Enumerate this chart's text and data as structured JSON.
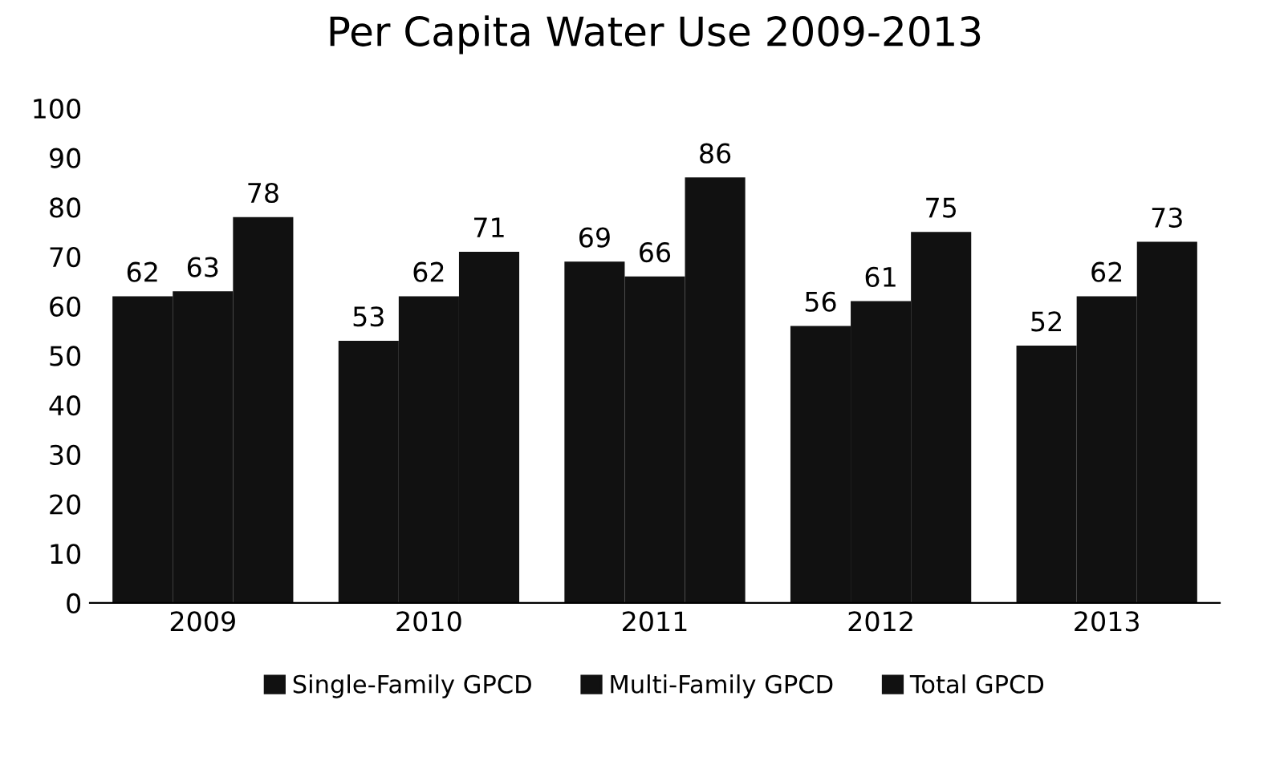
{
  "chart_data": {
    "type": "bar",
    "title": "Per Capita Water Use 2009-2013",
    "categories": [
      "2009",
      "2010",
      "2011",
      "2012",
      "2013"
    ],
    "series": [
      {
        "name": "Single-Family GPCD",
        "color": "#111111",
        "values": [
          62,
          53,
          69,
          56,
          52
        ]
      },
      {
        "name": "Multi-Family GPCD",
        "color": "#111111",
        "values": [
          63,
          62,
          66,
          61,
          62
        ]
      },
      {
        "name": "Total GPCD",
        "color": "#111111",
        "values": [
          78,
          71,
          86,
          75,
          73
        ]
      }
    ],
    "ylim": [
      0,
      100
    ],
    "yticks": [
      0,
      10,
      20,
      30,
      40,
      50,
      60,
      70,
      80,
      90,
      100
    ],
    "data_labels": true,
    "legend": "bottom",
    "grid": false
  }
}
